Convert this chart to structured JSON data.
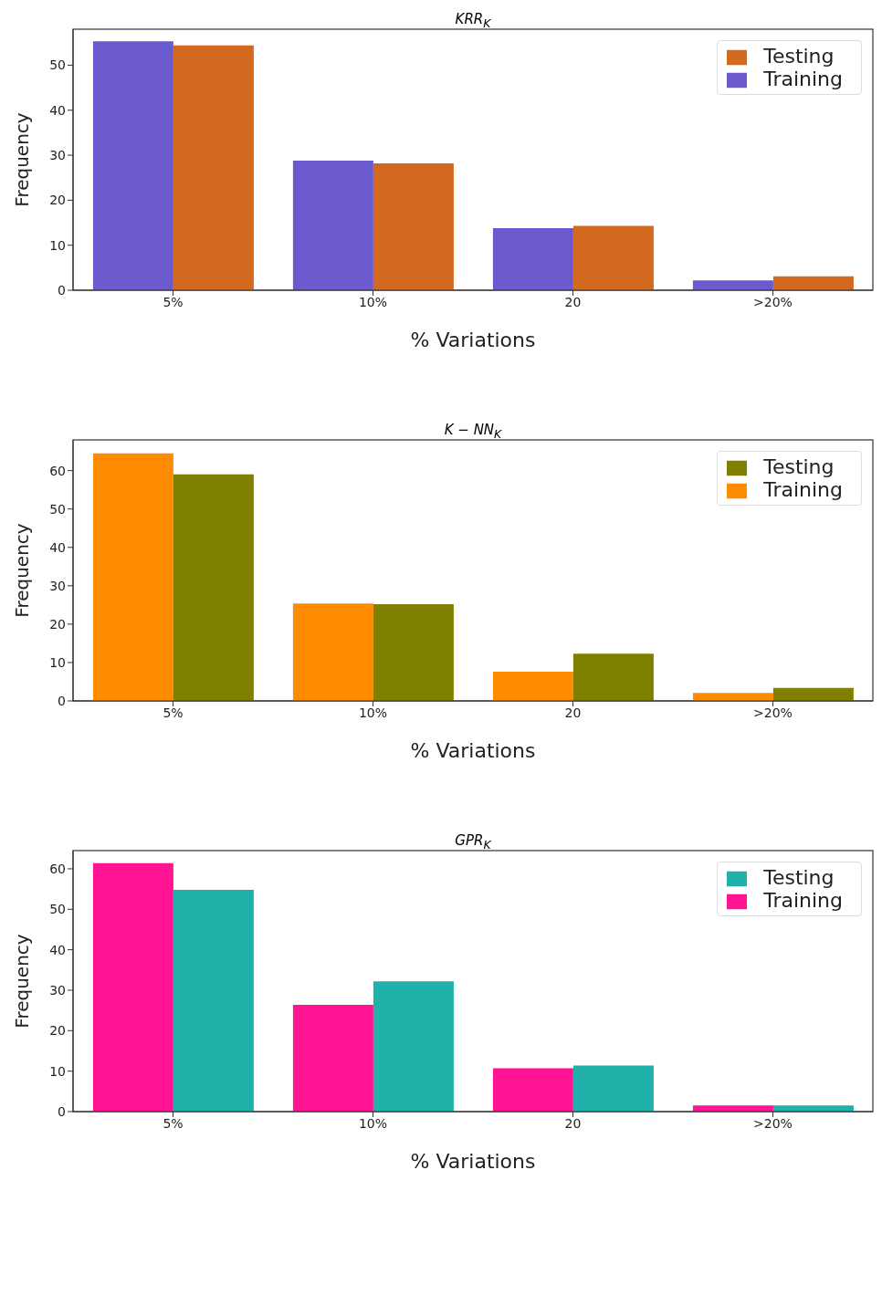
{
  "chart_data": [
    {
      "type": "bar",
      "title": "KRR$_{K}$",
      "xlabel": "% Variations",
      "ylabel": "Frequency",
      "categories": [
        "5%",
        "10%",
        "20",
        ">20%"
      ],
      "series": [
        {
          "name": "Training",
          "color": "#6a5acd",
          "values": [
            55.3,
            28.8,
            13.8,
            2.2
          ]
        },
        {
          "name": "Testing",
          "color": "#d2691e",
          "values": [
            54.4,
            28.2,
            14.3,
            3.1
          ]
        }
      ],
      "ylim": [
        0,
        58
      ],
      "yticks": [
        0,
        10,
        20,
        30,
        40,
        50
      ],
      "legend": "top right"
    },
    {
      "type": "bar",
      "title": "K − NN$_{K}$",
      "xlabel": "% Variations",
      "ylabel": "Frequency",
      "categories": [
        "5%",
        "10%",
        "20",
        ">20%"
      ],
      "series": [
        {
          "name": "Training",
          "color": "#ff8c00",
          "values": [
            64.5,
            25.4,
            7.6,
            2.1
          ]
        },
        {
          "name": "Testing",
          "color": "#808000",
          "values": [
            59,
            25.2,
            12.3,
            3.4
          ]
        }
      ],
      "ylim": [
        0,
        68
      ],
      "yticks": [
        0,
        10,
        20,
        30,
        40,
        50,
        60
      ],
      "legend": "top right"
    },
    {
      "type": "bar",
      "title": "GPR$_{K}$",
      "xlabel": "% Variations",
      "ylabel": "Frequency",
      "categories": [
        "5%",
        "10%",
        "20",
        ">20%"
      ],
      "series": [
        {
          "name": "Training",
          "color": "#ff1493",
          "values": [
            61.4,
            26.4,
            10.7,
            1.5
          ]
        },
        {
          "name": "Testing",
          "color": "#20b2aa",
          "values": [
            54.8,
            32.2,
            11.4,
            1.5
          ]
        }
      ],
      "ylim": [
        0,
        64.5
      ],
      "yticks": [
        0,
        10,
        20,
        30,
        40,
        50,
        60
      ],
      "legend": "top right"
    }
  ]
}
